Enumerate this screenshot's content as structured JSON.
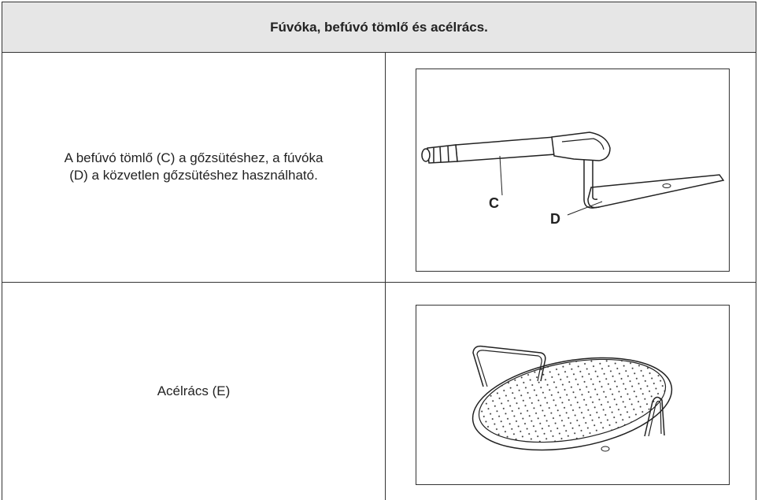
{
  "header": {
    "title": "Fúvóka, befúvó tömlő és acélrács."
  },
  "rows": [
    {
      "text": [
        "A befúvó tömlő (C) a gőzsütéshez, a fúvóka",
        "(D) a közvetlen gőzsütéshez használható."
      ],
      "labels": [
        "C",
        "D"
      ]
    },
    {
      "text": [
        "Acélrács (E)"
      ]
    }
  ]
}
